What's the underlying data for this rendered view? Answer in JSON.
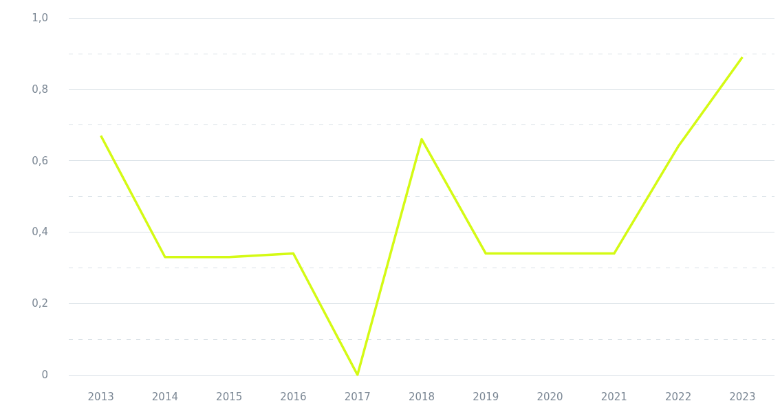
{
  "chart_data": {
    "type": "line",
    "categories": [
      "2013",
      "2014",
      "2015",
      "2016",
      "2017",
      "2018",
      "2019",
      "2020",
      "2021",
      "2022",
      "2023"
    ],
    "series": [
      {
        "color": "#d4fa14",
        "values": [
          0.67,
          0.33,
          0.33,
          0.34,
          0,
          0.66,
          0.34,
          0.34,
          0.34,
          0.64,
          0.89
        ]
      }
    ],
    "ylim": [
      0,
      1
    ],
    "yticks": [
      0,
      {
        "value": 0.1,
        "label": null
      },
      {
        "value": 0.2,
        "label": "0,2"
      },
      {
        "value": 0.3,
        "label": null
      },
      {
        "value": 0.4,
        "label": "0,4"
      },
      {
        "value": 0.5,
        "label": null
      },
      {
        "value": 0.6,
        "label": "0,6"
      },
      {
        "value": 0.7,
        "label": null
      },
      {
        "value": 0.8,
        "label": "0,8"
      },
      {
        "value": 0.9,
        "label": null
      },
      {
        "value": 1,
        "label": "1,0"
      }
    ],
    "grid": true,
    "marker": "none",
    "line_style": "solid"
  }
}
